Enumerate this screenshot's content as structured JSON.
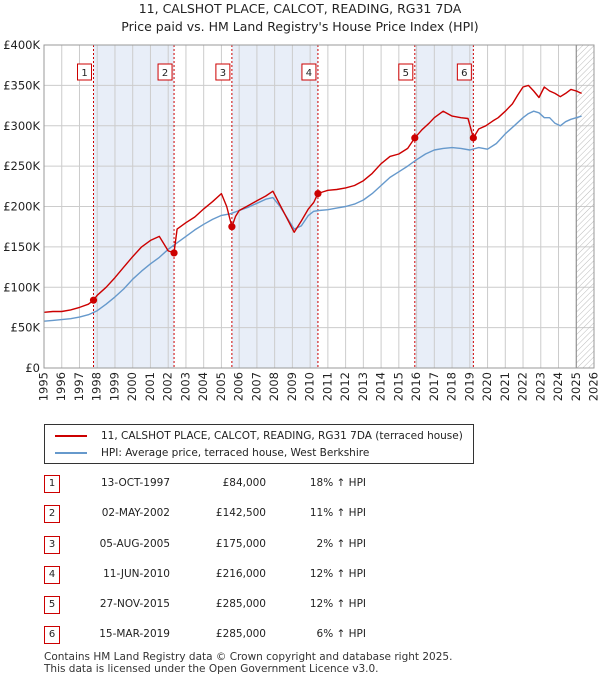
{
  "title_line1": "11, CALSHOT PLACE, CALCOT, READING, RG31 7DA",
  "title_line2": "Price paid vs. HM Land Registry's House Price Index (HPI)",
  "colors": {
    "property_line": "#cc0000",
    "hpi_line": "#6699cc",
    "shade": "#e8eef8",
    "grid": "#cccccc",
    "marker_box_border": "#cc0000"
  },
  "chart_data": {
    "type": "line",
    "title": "Price paid vs. HM Land Registry's House Price Index (HPI)",
    "xlabel": "",
    "ylabel": "",
    "xlim": [
      1995,
      2026
    ],
    "ylim": [
      0,
      400000
    ],
    "y_ticks": [
      0,
      50000,
      100000,
      150000,
      200000,
      250000,
      300000,
      350000,
      400000
    ],
    "y_tick_labels": [
      "£0",
      "£50K",
      "£100K",
      "£150K",
      "£200K",
      "£250K",
      "£300K",
      "£350K",
      "£400K"
    ],
    "x_ticks": [
      1995,
      1996,
      1997,
      1998,
      1999,
      2000,
      2001,
      2002,
      2003,
      2004,
      2005,
      2006,
      2007,
      2008,
      2009,
      2010,
      2011,
      2012,
      2013,
      2014,
      2015,
      2016,
      2017,
      2018,
      2019,
      2020,
      2021,
      2022,
      2023,
      2024,
      2025,
      2026
    ],
    "x_tick_labels": [
      "1995",
      "1996",
      "1997",
      "1998",
      "1999",
      "2000",
      "2001",
      "2002",
      "2003",
      "2004",
      "2005",
      "2006",
      "2007",
      "2008",
      "2009",
      "2010",
      "2011",
      "2012",
      "2013",
      "2014",
      "2015",
      "2016",
      "2017",
      "2018",
      "2019",
      "2020",
      "2021",
      "2022",
      "2023",
      "2024",
      "2025",
      "2026"
    ],
    "grid": true,
    "future_hatch_from": 2025.0,
    "shaded_periods": [
      [
        1997.79,
        2002.33
      ],
      [
        2005.59,
        2010.44
      ],
      [
        2015.9,
        2019.2
      ]
    ],
    "series": [
      {
        "name": "11, CALSHOT PLACE, CALCOT, READING, RG31 7DA (terraced house)",
        "color": "#cc0000",
        "x": [
          1995.0,
          1995.5,
          1996.0,
          1996.5,
          1997.0,
          1997.5,
          1997.79,
          1998.0,
          1998.5,
          1999.0,
          1999.5,
          2000.0,
          2000.5,
          2001.0,
          2001.5,
          2002.0,
          2002.33,
          2002.5,
          2003.0,
          2003.5,
          2004.0,
          2004.5,
          2005.0,
          2005.3,
          2005.59,
          2005.8,
          2006.0,
          2006.5,
          2007.0,
          2007.5,
          2007.9,
          2008.3,
          2008.7,
          2009.1,
          2009.5,
          2009.9,
          2010.2,
          2010.44,
          2010.7,
          2011.0,
          2011.5,
          2012.0,
          2012.5,
          2013.0,
          2013.5,
          2014.0,
          2014.5,
          2015.0,
          2015.5,
          2015.9,
          2016.3,
          2016.7,
          2017.0,
          2017.5,
          2018.0,
          2018.5,
          2018.9,
          2019.2,
          2019.5,
          2019.9,
          2020.3,
          2020.6,
          2021.0,
          2021.4,
          2021.7,
          2022.0,
          2022.3,
          2022.6,
          2022.9,
          2023.2,
          2023.5,
          2023.8,
          2024.1,
          2024.4,
          2024.7,
          2025.0,
          2025.3
        ],
        "values": [
          69000,
          70000,
          70000,
          72000,
          75000,
          79000,
          84000,
          90000,
          100000,
          112000,
          125000,
          138000,
          150000,
          158000,
          163000,
          145000,
          142500,
          172000,
          180000,
          187000,
          197000,
          206000,
          216000,
          200000,
          175000,
          188000,
          195000,
          201000,
          207000,
          213000,
          219000,
          202000,
          185000,
          168000,
          182000,
          197000,
          205000,
          216000,
          218000,
          220000,
          221000,
          223000,
          226000,
          232000,
          241000,
          253000,
          262000,
          265000,
          272000,
          285000,
          295000,
          303000,
          310000,
          318000,
          312000,
          310000,
          309000,
          285000,
          296000,
          300000,
          306000,
          310000,
          318000,
          327000,
          338000,
          348000,
          350000,
          343000,
          335000,
          348000,
          343000,
          340000,
          336000,
          340000,
          345000,
          343000,
          340000
        ]
      },
      {
        "name": "HPI: Average price, terraced house, West Berkshire",
        "color": "#6699cc",
        "x": [
          1995.0,
          1995.5,
          1996.0,
          1996.5,
          1997.0,
          1997.5,
          1998.0,
          1998.5,
          1999.0,
          1999.5,
          2000.0,
          2000.5,
          2001.0,
          2001.5,
          2002.0,
          2002.5,
          2003.0,
          2003.5,
          2004.0,
          2004.5,
          2005.0,
          2005.5,
          2006.0,
          2006.5,
          2007.0,
          2007.5,
          2007.9,
          2008.3,
          2008.7,
          2009.1,
          2009.5,
          2009.9,
          2010.2,
          2010.5,
          2011.0,
          2011.5,
          2012.0,
          2012.5,
          2013.0,
          2013.5,
          2014.0,
          2014.5,
          2015.0,
          2015.5,
          2016.0,
          2016.5,
          2017.0,
          2017.5,
          2018.0,
          2018.5,
          2019.0,
          2019.5,
          2020.0,
          2020.5,
          2021.0,
          2021.5,
          2022.0,
          2022.3,
          2022.6,
          2022.9,
          2023.2,
          2023.5,
          2023.8,
          2024.1,
          2024.4,
          2024.7,
          2025.0,
          2025.3
        ],
        "values": [
          58000,
          59000,
          60000,
          61000,
          63000,
          66000,
          71000,
          79000,
          88000,
          98000,
          110000,
          120000,
          129000,
          137000,
          147000,
          155000,
          163000,
          171000,
          178000,
          184000,
          189000,
          191000,
          195000,
          199000,
          204000,
          209000,
          211000,
          200000,
          186000,
          172000,
          176000,
          189000,
          194000,
          195000,
          196000,
          198000,
          200000,
          203000,
          208000,
          216000,
          226000,
          236000,
          243000,
          250000,
          258000,
          265000,
          270000,
          272000,
          273000,
          272000,
          270000,
          273000,
          271000,
          278000,
          290000,
          300000,
          310000,
          315000,
          318000,
          316000,
          310000,
          310000,
          303000,
          300000,
          305000,
          308000,
          310000,
          312000
        ]
      }
    ],
    "sale_markers": [
      {
        "label": "1",
        "x": 1997.79,
        "value": 84000
      },
      {
        "label": "2",
        "x": 2002.33,
        "value": 142500
      },
      {
        "label": "3",
        "x": 2005.59,
        "value": 175000
      },
      {
        "label": "4",
        "x": 2010.44,
        "value": 216000
      },
      {
        "label": "5",
        "x": 2015.9,
        "value": 285000
      },
      {
        "label": "6",
        "x": 2019.2,
        "value": 285000
      }
    ]
  },
  "legend": {
    "items": [
      {
        "label": "11, CALSHOT PLACE, CALCOT, READING, RG31 7DA (terraced house)",
        "color": "#cc0000"
      },
      {
        "label": "HPI: Average price, terraced house, West Berkshire",
        "color": "#6699cc"
      }
    ]
  },
  "sales": [
    {
      "num": "1",
      "date": "13-OCT-1997",
      "price": "£84,000",
      "delta": "18% ↑ HPI"
    },
    {
      "num": "2",
      "date": "02-MAY-2002",
      "price": "£142,500",
      "delta": "11% ↑ HPI"
    },
    {
      "num": "3",
      "date": "05-AUG-2005",
      "price": "£175,000",
      "delta": "2% ↑ HPI"
    },
    {
      "num": "4",
      "date": "11-JUN-2010",
      "price": "£216,000",
      "delta": "12% ↑ HPI"
    },
    {
      "num": "5",
      "date": "27-NOV-2015",
      "price": "£285,000",
      "delta": "12% ↑ HPI"
    },
    {
      "num": "6",
      "date": "15-MAR-2019",
      "price": "£285,000",
      "delta": "6% ↑ HPI"
    }
  ],
  "footer_line1": "Contains HM Land Registry data © Crown copyright and database right 2025.",
  "footer_line2": "This data is licensed under the Open Government Licence v3.0."
}
